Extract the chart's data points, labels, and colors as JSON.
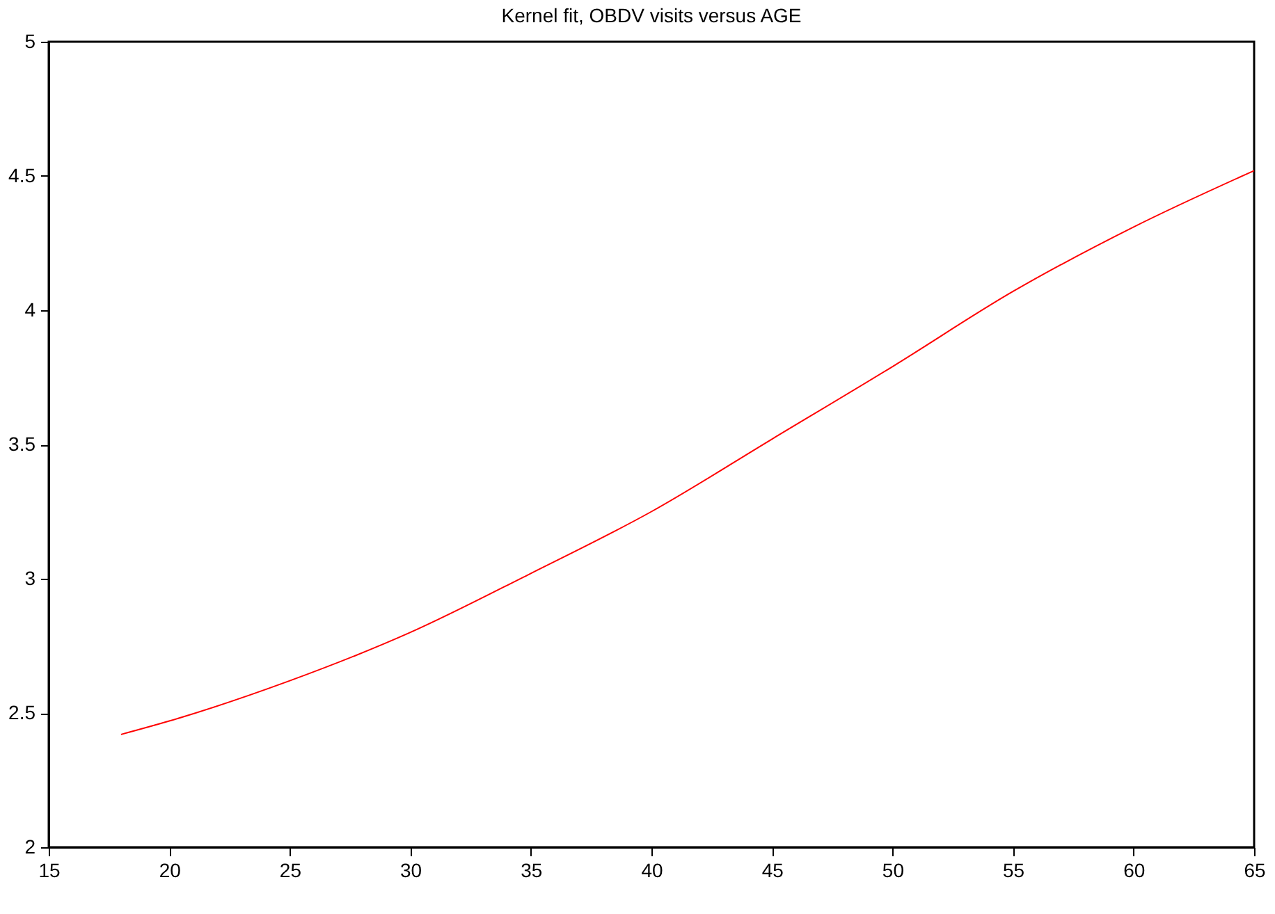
{
  "chart_data": {
    "type": "line",
    "title": "Kernel fit, OBDV visits versus AGE",
    "x": [
      18,
      20,
      25,
      30,
      35,
      40,
      45,
      50,
      55,
      60,
      65
    ],
    "series": [
      {
        "color": "#ff0000",
        "values": [
          2.42,
          2.47,
          2.62,
          2.8,
          3.02,
          3.25,
          3.52,
          3.79,
          4.07,
          4.31,
          4.52
        ]
      }
    ],
    "xlim": [
      15,
      65
    ],
    "xticks": [
      15,
      20,
      25,
      30,
      35,
      40,
      45,
      50,
      55,
      60,
      65
    ],
    "ylim": [
      2,
      5
    ],
    "yticks": [
      2,
      2.5,
      3,
      3.5,
      4,
      4.5,
      5
    ],
    "grid": false,
    "legend": false,
    "marker": "none",
    "line_style": "solid"
  }
}
